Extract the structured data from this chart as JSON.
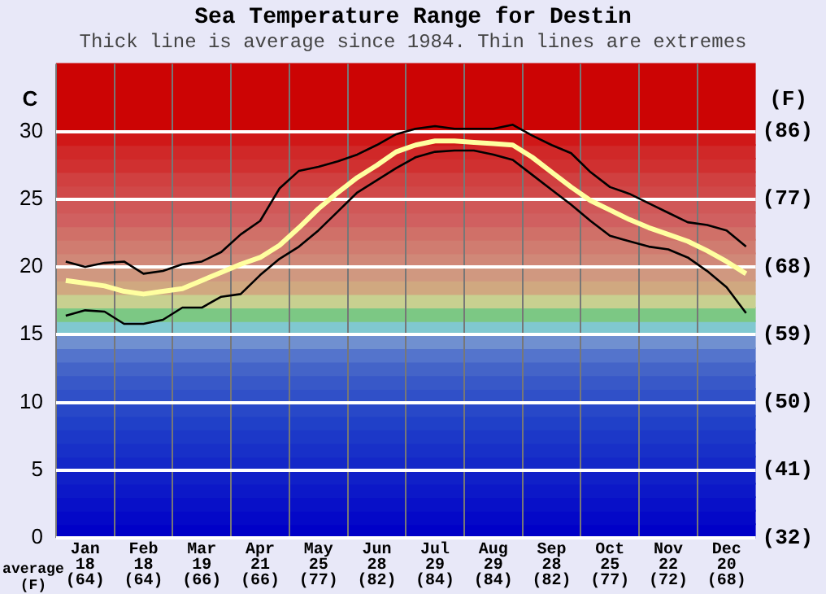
{
  "chart_data": {
    "type": "line",
    "title": "Sea Temperature Range for Destin",
    "subtitle": "Thick line is average since 1984. Thin lines are extremes",
    "ylabel": "C",
    "y2label": "(F)",
    "annotations": [
      "average\n(F)"
    ],
    "categories": [
      null,
      "Jan\n18\n(64)",
      null,
      null,
      "Feb\n18\n(64)",
      null,
      null,
      "Mar\n19\n(66)",
      null,
      null,
      "Apr\n21\n(66)",
      null,
      null,
      "May\n25\n(77)",
      null,
      null,
      "Jun\n28\n(82)",
      null,
      null,
      "Jul\n29\n(84)",
      null,
      null,
      "Aug\n29\n(84)",
      null,
      null,
      "Sep\n28\n(82)",
      null,
      null,
      "Oct\n25\n(77)",
      null,
      null,
      "Nov\n22\n(72)",
      null,
      null,
      "Dec\n20\n(68)",
      null
    ],
    "ylim": [
      0,
      35
    ],
    "yticks": [
      0,
      5,
      10,
      15,
      20,
      25,
      30
    ],
    "y2lim": [
      32,
      95
    ],
    "y2ticks": [
      {
        "value": 32,
        "label": "(32)"
      },
      {
        "value": 41,
        "label": "(41)"
      },
      {
        "value": 50,
        "label": "(50)"
      },
      {
        "value": 59,
        "label": "(59)"
      },
      {
        "value": 68,
        "label": "(68)"
      },
      {
        "value": 77,
        "label": "(77)"
      },
      {
        "value": 86,
        "label": "(86)"
      }
    ],
    "grid": true,
    "marker": "none",
    "bands": [
      {
        "axis": "y",
        "from": 0,
        "to": 1,
        "color": "#0000c8"
      },
      {
        "axis": "y",
        "from": 1,
        "to": 2,
        "color": "#0408c8"
      },
      {
        "axis": "y",
        "from": 2,
        "to": 3,
        "color": "#0810c8"
      },
      {
        "axis": "y",
        "from": 3,
        "to": 4,
        "color": "#0c18c8"
      },
      {
        "axis": "y",
        "from": 4,
        "to": 5,
        "color": "#1020c8"
      },
      {
        "axis": "y",
        "from": 5,
        "to": 6,
        "color": "#1428c8"
      },
      {
        "axis": "y",
        "from": 6,
        "to": 7,
        "color": "#1830c8"
      },
      {
        "axis": "y",
        "from": 7,
        "to": 8,
        "color": "#1c38c8"
      },
      {
        "axis": "y",
        "from": 8,
        "to": 9,
        "color": "#2040c8"
      },
      {
        "axis": "y",
        "from": 9,
        "to": 10,
        "color": "#2848c8"
      },
      {
        "axis": "y",
        "from": 10,
        "to": 11,
        "color": "#3050c8"
      },
      {
        "axis": "y",
        "from": 11,
        "to": 12,
        "color": "#3858c8"
      },
      {
        "axis": "y",
        "from": 12,
        "to": 13,
        "color": "#4464c8"
      },
      {
        "axis": "y",
        "from": 13,
        "to": 14,
        "color": "#5474cc"
      },
      {
        "axis": "y",
        "from": 14,
        "to": 15,
        "color": "#7090d0"
      },
      {
        "axis": "y",
        "from": 15,
        "to": 16,
        "color": "#80c8d0"
      },
      {
        "axis": "y",
        "from": 16,
        "to": 17,
        "color": "#7cc884"
      },
      {
        "axis": "y",
        "from": 17,
        "to": 18,
        "color": "#c8d090"
      },
      {
        "axis": "y",
        "from": 18,
        "to": 19,
        "color": "#d0a880"
      },
      {
        "axis": "y",
        "from": 19,
        "to": 20,
        "color": "#d09880"
      },
      {
        "axis": "y",
        "from": 20,
        "to": 21,
        "color": "#d08878"
      },
      {
        "axis": "y",
        "from": 21,
        "to": 22,
        "color": "#d07c70"
      },
      {
        "axis": "y",
        "from": 22,
        "to": 23,
        "color": "#d07068"
      },
      {
        "axis": "y",
        "from": 23,
        "to": 24,
        "color": "#d06060"
      },
      {
        "axis": "y",
        "from": 24,
        "to": 25,
        "color": "#d05858"
      },
      {
        "axis": "y",
        "from": 25,
        "to": 26,
        "color": "#d04848"
      },
      {
        "axis": "y",
        "from": 26,
        "to": 27,
        "color": "#d04040"
      },
      {
        "axis": "y",
        "from": 27,
        "to": 28,
        "color": "#d03030"
      },
      {
        "axis": "y",
        "from": 28,
        "to": 29,
        "color": "#d02828"
      },
      {
        "axis": "y",
        "from": 29,
        "to": 30,
        "color": "#d01818"
      },
      {
        "axis": "y",
        "from": 30,
        "to": 35,
        "color": "#cc0404"
      }
    ],
    "series": [
      {
        "color": "#000000",
        "values": [
          20.4,
          20.0,
          20.3,
          20.4,
          19.5,
          19.7,
          20.2,
          20.4,
          21.1,
          22.4,
          23.4,
          25.8,
          27.1,
          27.4,
          27.8,
          28.3,
          29.0,
          29.8,
          30.2,
          30.4,
          30.2,
          30.2,
          30.2,
          30.5,
          29.7,
          29.0,
          28.4,
          27.0,
          25.9,
          25.4,
          24.7,
          24.0,
          23.3,
          23.1,
          22.7,
          21.5
        ]
      },
      {
        "color": "#ffffa0",
        "values": [
          19.0,
          18.8,
          18.6,
          18.2,
          18.0,
          18.2,
          18.4,
          19.0,
          19.6,
          20.2,
          20.7,
          21.6,
          22.9,
          24.3,
          25.5,
          26.6,
          27.5,
          28.5,
          29.0,
          29.3,
          29.3,
          29.2,
          29.1,
          29.0,
          28.1,
          27.0,
          25.9,
          24.9,
          24.2,
          23.5,
          22.9,
          22.4,
          21.9,
          21.2,
          20.4,
          19.5
        ]
      },
      {
        "color": "#000000",
        "values": [
          16.4,
          16.8,
          16.7,
          15.8,
          15.8,
          16.1,
          17.0,
          17.0,
          17.8,
          18.0,
          19.4,
          20.6,
          21.5,
          22.7,
          24.1,
          25.5,
          26.4,
          27.3,
          28.1,
          28.5,
          28.6,
          28.6,
          28.3,
          27.9,
          26.8,
          25.7,
          24.6,
          23.4,
          22.3,
          21.9,
          21.5,
          21.3,
          20.7,
          19.7,
          18.5,
          16.6
        ]
      }
    ]
  }
}
